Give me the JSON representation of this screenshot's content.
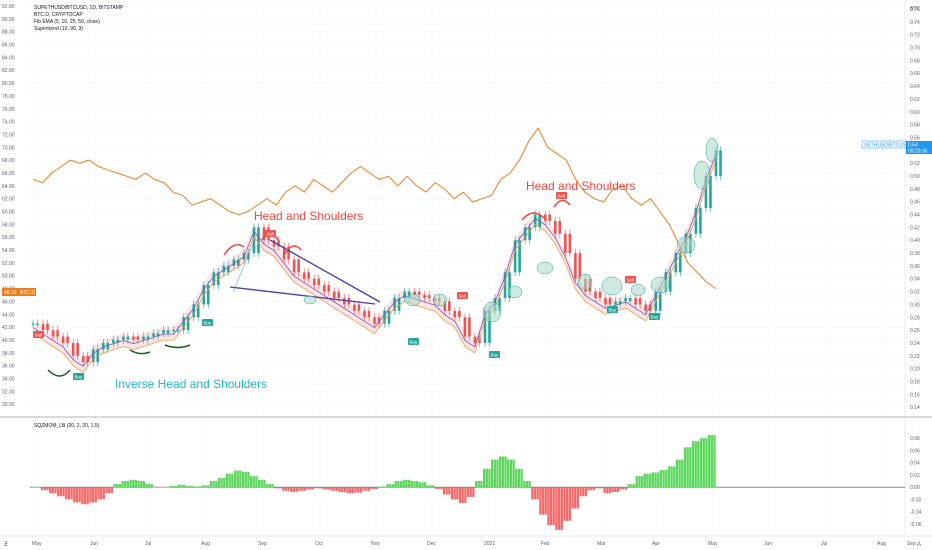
{
  "header": {
    "symbol": "SUPETHUSD/BTCUSD, 1D, BITSTAMP",
    "compare": "BTC.D, CRYPTOCAP",
    "ema": "Fib EMA (5, 10, 25, 50, close)",
    "supertrend": "Supertrend (10, 90, 3)",
    "btc_tag": "BTC"
  },
  "price_tags": {
    "right_symbol": "XETHUSD/BTCUSD",
    "right_value": "0.54",
    "right_time": "09:20:36",
    "left_value": "48.03",
    "left_symbol": "BTC.D"
  },
  "annotations": {
    "hs1": "Head and Shoulders",
    "hs2": "Head and Shoulders",
    "ihs": "Inverse Head and Shoulders"
  },
  "signals": [
    {
      "label": "Sell",
      "x": 38,
      "y": 335,
      "kind": "sell"
    },
    {
      "label": "Buy",
      "x": 78,
      "y": 377,
      "kind": "buy"
    },
    {
      "label": "Buy",
      "x": 207,
      "y": 323,
      "kind": "buy"
    },
    {
      "label": "Sell",
      "x": 270,
      "y": 234,
      "kind": "sell"
    },
    {
      "label": "Buy",
      "x": 413,
      "y": 342,
      "kind": "buy"
    },
    {
      "label": "Sell",
      "x": 462,
      "y": 296,
      "kind": "sell"
    },
    {
      "label": "Buy",
      "x": 494,
      "y": 355,
      "kind": "buy"
    },
    {
      "label": "Sell",
      "x": 561,
      "y": 196,
      "kind": "sell"
    },
    {
      "label": "Buy",
      "x": 612,
      "y": 310,
      "kind": "buy"
    },
    {
      "label": "Sell",
      "x": 630,
      "y": 280,
      "kind": "sell"
    },
    {
      "label": "Buy",
      "x": 654,
      "y": 317,
      "kind": "buy"
    }
  ],
  "oscillator_label": "SQZMOM_LB (20, 2, 20, 1.5)",
  "colors": {
    "up": "#26a69a",
    "down": "#ef5350",
    "btcd": "#ee7d1c",
    "mom_up": "#5cd65c",
    "mom_down": "#f26a6a",
    "grid": "#f0f3fa",
    "axis_text": "#5d606b"
  },
  "chart_data": [
    {
      "type": "line",
      "name": "main",
      "left_axis": {
        "label": "BTC.D",
        "ticks": [
          "92.00",
          "90.00",
          "88.00",
          "86.00",
          "84.00",
          "82.00",
          "80.00",
          "78.00",
          "76.00",
          "74.00",
          "72.00",
          "70.00",
          "68.00",
          "66.00",
          "64.00",
          "62.00",
          "60.00",
          "58.00",
          "56.00",
          "54.00",
          "52.00",
          "50.00",
          "48.00",
          "46.00",
          "44.00",
          "42.00",
          "40.00",
          "38.00",
          "36.00",
          "34.00",
          "32.00",
          "30.00"
        ]
      },
      "right_axis": {
        "label": "BTC",
        "ticks": [
          "0.76",
          "0.74",
          "0.72",
          "0.70",
          "0.68",
          "0.66",
          "0.64",
          "0.62",
          "0.60",
          "0.58",
          "0.56",
          "0.54",
          "0.52",
          "0.50",
          "0.48",
          "0.46",
          "0.44",
          "0.42",
          "0.40",
          "0.38",
          "0.36",
          "0.34",
          "0.32",
          "0.30",
          "0.28",
          "0.26",
          "0.24",
          "0.22",
          "0.20",
          "0.18",
          "0.16",
          "0.14"
        ]
      },
      "x_ticks": [
        "May",
        "Jun",
        "Jul",
        "Aug",
        "Sep",
        "Oct",
        "Nov",
        "Dec",
        "2021",
        "Feb",
        "Mar",
        "Apr",
        "May",
        "Jun",
        "Jul",
        "Aug",
        "Sep"
      ],
      "btcd_series": [
        65,
        64.5,
        66,
        67,
        68,
        67.5,
        68,
        67,
        66.5,
        66,
        65.5,
        65,
        66,
        65,
        64.5,
        63,
        62.5,
        61,
        61.5,
        62,
        61,
        60,
        59.5,
        60,
        61,
        62,
        61,
        63,
        64,
        63,
        65,
        64,
        63,
        64.5,
        66,
        67,
        66,
        65,
        65.5,
        64,
        65.5,
        64,
        63,
        64.5,
        63.5,
        62,
        63,
        61.5,
        62,
        62.5,
        65,
        66,
        68,
        71,
        73,
        70,
        69,
        68,
        65,
        63,
        62,
        61.5,
        63.5,
        64,
        62,
        61,
        62,
        60,
        58,
        55,
        52,
        50.5,
        49,
        48
      ],
      "ratio_series": [
        0.27,
        0.26,
        0.25,
        0.24,
        0.22,
        0.21,
        0.23,
        0.24,
        0.245,
        0.25,
        0.245,
        0.25,
        0.255,
        0.26,
        0.26,
        0.28,
        0.3,
        0.33,
        0.35,
        0.36,
        0.37,
        0.38,
        0.42,
        0.4,
        0.39,
        0.37,
        0.35,
        0.34,
        0.33,
        0.32,
        0.31,
        0.3,
        0.29,
        0.28,
        0.27,
        0.29,
        0.31,
        0.32,
        0.315,
        0.31,
        0.305,
        0.29,
        0.28,
        0.25,
        0.24,
        0.29,
        0.31,
        0.35,
        0.4,
        0.42,
        0.44,
        0.43,
        0.41,
        0.38,
        0.34,
        0.32,
        0.31,
        0.3,
        0.305,
        0.31,
        0.3,
        0.29,
        0.32,
        0.35,
        0.38,
        0.41,
        0.45,
        0.5,
        0.54
      ]
    },
    {
      "type": "bar",
      "name": "SQZMOM_LB (20, 2, 20, 1.5)",
      "axis_ticks": [
        "0.08",
        "0.06",
        "0.04",
        "0.02",
        "0.00",
        "-0.02",
        "-0.04",
        "-0.06"
      ],
      "values": [
        0,
        -0.005,
        -0.01,
        -0.015,
        -0.02,
        -0.025,
        -0.028,
        -0.025,
        -0.02,
        -0.01,
        0.005,
        0.01,
        0.012,
        0.01,
        0.005,
        0,
        0,
        0.002,
        0.004,
        0.002,
        0.001,
        0.003,
        0.01,
        0.015,
        0.022,
        0.027,
        0.025,
        0.018,
        0.012,
        0.005,
        -0.002,
        -0.006,
        -0.008,
        -0.006,
        -0.004,
        -0.002,
        -0.004,
        -0.006,
        -0.008,
        -0.01,
        -0.009,
        -0.006,
        -0.003,
        0.001,
        0.005,
        0.01,
        0.012,
        0.01,
        0.008,
        0.003,
        -0.003,
        -0.012,
        -0.02,
        -0.026,
        -0.016,
        0.01,
        0.03,
        0.045,
        0.05,
        0.045,
        0.03,
        0.01,
        -0.02,
        -0.045,
        -0.062,
        -0.07,
        -0.055,
        -0.035,
        -0.015,
        -0.005,
        -0.002,
        -0.01,
        -0.008,
        -0.004,
        0.005,
        0.018,
        0.022,
        0.024,
        0.028,
        0.034,
        0.045,
        0.065,
        0.075,
        0.08,
        0.085
      ],
      "ylim": [
        -0.07,
        0.09
      ]
    }
  ]
}
